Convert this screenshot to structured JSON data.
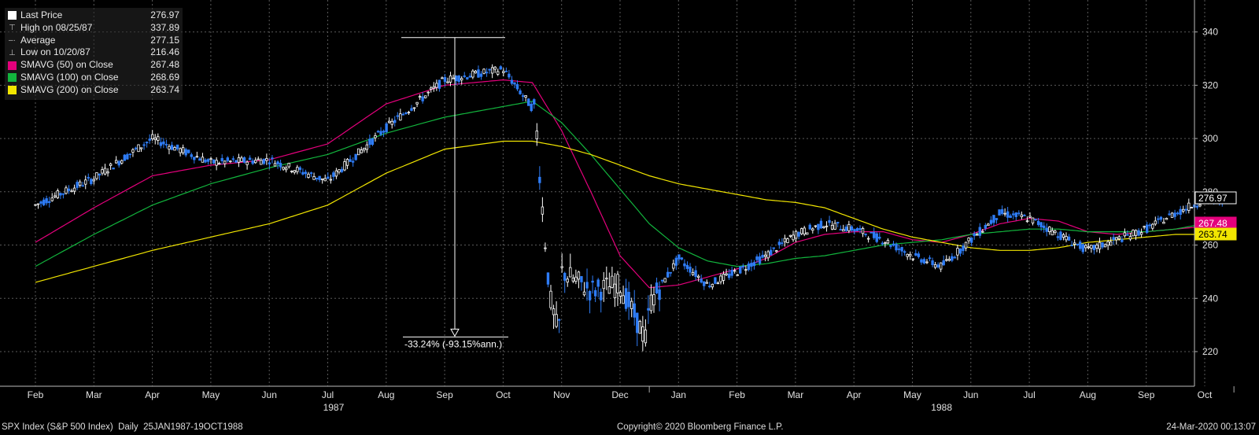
{
  "chart_data": {
    "type": "line",
    "title": "",
    "instrument": "SPX Index (S&P 500 Index)",
    "frequency": "Daily",
    "period": "25JAN1987-19OCT1988",
    "copyright": "Copyright© 2020 Bloomberg Finance L.P.",
    "timestamp": "24-Mar-2020 00:13:07",
    "ylim": [
      207,
      352
    ],
    "y_ticks": [
      220,
      240,
      260,
      280,
      300,
      320,
      340
    ],
    "y_tick_labels": [
      "220",
      "240",
      "260",
      "280",
      "300",
      "320",
      "340"
    ],
    "x_month_labels": [
      "Feb",
      "Mar",
      "Apr",
      "May",
      "Jun",
      "Jul",
      "Aug",
      "Sep",
      "Oct",
      "Nov",
      "Dec",
      "Jan",
      "Feb",
      "Mar",
      "Apr",
      "May",
      "Jun",
      "Jul",
      "Aug",
      "Sep",
      "Oct"
    ],
    "x_year_labels": [
      "1987",
      "1988"
    ],
    "grid": true,
    "legend_position": "top-left",
    "legend": [
      {
        "label": "Last Price",
        "value": "276.97",
        "marker": "white-square"
      },
      {
        "label": "High on 08/25/87",
        "value": "337.89",
        "marker": "high-icon"
      },
      {
        "label": "Average",
        "value": "277.15",
        "marker": "average-icon"
      },
      {
        "label": "Low on 10/20/87",
        "value": "216.46",
        "marker": "low-icon"
      },
      {
        "label": "SMAVG (50)  on Close",
        "value": "267.48",
        "marker": "magenta-square"
      },
      {
        "label": "SMAVG (100)  on Close",
        "value": "268.69",
        "marker": "green-square"
      },
      {
        "label": "SMAVG (200)  on Close",
        "value": "263.74",
        "marker": "yellow-square"
      }
    ],
    "annotation": {
      "text": "-33.24% (-93.15%ann.)",
      "from_value": 337.89,
      "to_value": 225.5
    },
    "last_price_tags": [
      {
        "value": 276.97,
        "text": "276.97",
        "color": "#ffffff"
      },
      {
        "value": 267.48,
        "text": "267.48",
        "color": "#e4007c"
      },
      {
        "value": 263.74,
        "text": "263.74",
        "color": "#f2e600"
      }
    ],
    "series": [
      {
        "name": "Last Price",
        "kind": "candles",
        "color": "#2e7cf6",
        "x": [
          0,
          1,
          2,
          3,
          4,
          5,
          6,
          7,
          8,
          8.55,
          8.65,
          8.8,
          8.95,
          9,
          9.5,
          10,
          10.45,
          10.5,
          11,
          11.5,
          12,
          12.5,
          13,
          13.5,
          14,
          14.5,
          15,
          15.5,
          16,
          16.5,
          17,
          17.5,
          18,
          18.5,
          19,
          19.5,
          20,
          20.3
        ],
        "values": [
          275,
          285,
          300,
          291,
          292,
          284,
          304,
          322,
          326,
          310,
          280,
          240,
          226,
          250,
          243,
          245,
          224,
          238,
          255,
          245,
          250,
          256,
          264,
          268,
          266,
          262,
          256,
          252,
          262,
          272,
          270,
          264,
          258,
          262,
          266,
          272,
          277,
          276.97
        ]
      },
      {
        "name": "SMAVG (50)",
        "color": "#e4007c",
        "x": [
          0,
          1,
          2,
          3,
          4,
          5,
          6,
          7,
          8,
          8.5,
          9,
          9.5,
          10,
          10.5,
          11,
          11.5,
          12,
          12.5,
          13,
          13.5,
          14,
          14.5,
          15,
          15.5,
          16,
          16.5,
          17,
          17.5,
          18,
          18.5,
          19,
          19.5,
          20,
          20.3
        ],
        "values": [
          261,
          274,
          286,
          290,
          292,
          298,
          313,
          320,
          322,
          321,
          303,
          280,
          256,
          244,
          245,
          248,
          251,
          255,
          261,
          264,
          265,
          265,
          262,
          261,
          264,
          268,
          270,
          269,
          265,
          264,
          265,
          266,
          267,
          267.48
        ]
      },
      {
        "name": "SMAVG (100)",
        "color": "#12b53d",
        "x": [
          0,
          1,
          2,
          3,
          4,
          5,
          6,
          7,
          8,
          8.5,
          9,
          9.5,
          10,
          10.5,
          11,
          11.5,
          12,
          12.5,
          13,
          13.5,
          14,
          14.5,
          15,
          15.5,
          16,
          16.5,
          17,
          17.5,
          18,
          18.5,
          19,
          19.5,
          20,
          20.3
        ],
        "values": [
          252,
          264,
          275,
          283,
          289,
          294,
          302,
          308,
          312,
          314,
          306,
          294,
          281,
          268,
          259,
          254,
          252,
          253,
          255,
          256,
          258,
          260,
          261,
          262,
          264,
          265,
          266,
          266,
          265,
          265,
          265,
          266,
          268,
          268.69
        ]
      },
      {
        "name": "SMAVG (200)",
        "color": "#f2e600",
        "x": [
          0,
          1,
          2,
          3,
          4,
          5,
          6,
          7,
          8,
          8.5,
          9,
          9.5,
          10,
          10.5,
          11,
          11.5,
          12,
          12.5,
          13,
          13.5,
          14,
          14.5,
          15,
          15.5,
          16,
          16.5,
          17,
          17.5,
          18,
          18.5,
          19,
          19.5,
          20,
          20.3
        ],
        "values": [
          246,
          252,
          258,
          263,
          268,
          275,
          287,
          296,
          299,
          299,
          297,
          294,
          290,
          286,
          283,
          281,
          279,
          277,
          276,
          274,
          270,
          266,
          263,
          261,
          259,
          258,
          258,
          259,
          261,
          262,
          263,
          264,
          264,
          263.74
        ]
      }
    ]
  }
}
